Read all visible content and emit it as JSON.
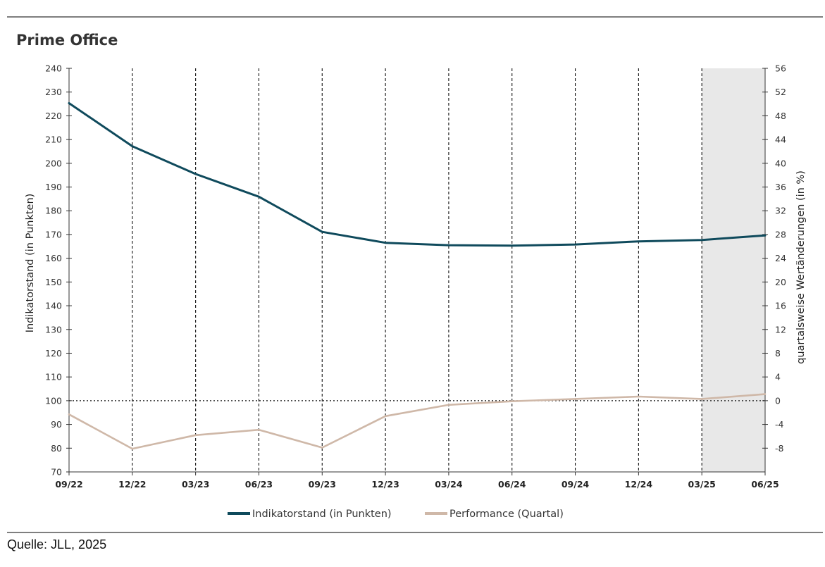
{
  "title": "Prime Office",
  "source": "Quelle: JLL, 2025",
  "chart_data": {
    "type": "line",
    "categories": [
      "09/22",
      "12/22",
      "03/23",
      "06/23",
      "09/23",
      "12/23",
      "03/24",
      "06/24",
      "09/24",
      "12/24",
      "03/25",
      "06/25"
    ],
    "series": [
      {
        "name": "Indikatorstand (in Punkten)",
        "axis": "left",
        "color": "#0f4a5c",
        "values": [
          225.3,
          207.2,
          195.5,
          185.9,
          171.1,
          166.5,
          165.5,
          165.3,
          165.8,
          167.1,
          167.7,
          169.6
        ]
      },
      {
        "name": "Performance (Quartal)",
        "axis": "right",
        "color": "#cfb8a8",
        "values": [
          -2.3,
          -8.1,
          -5.8,
          -4.9,
          -7.9,
          -2.6,
          -0.7,
          -0.1,
          0.3,
          0.7,
          0.3,
          1.1
        ]
      }
    ],
    "y_left": {
      "label": "Indikatorstand (in Punkten)",
      "min": 70,
      "max": 240,
      "ticks": [
        70,
        80,
        90,
        100,
        110,
        120,
        130,
        140,
        150,
        160,
        170,
        180,
        190,
        200,
        210,
        220,
        230,
        240
      ]
    },
    "y_right": {
      "label": "quartalsweise Wertänderungen (in %)",
      "min": -12,
      "max": 56,
      "ticks": [
        -8,
        -4,
        0,
        4,
        8,
        12,
        16,
        20,
        24,
        28,
        32,
        36,
        40,
        44,
        48,
        52,
        56
      ]
    },
    "reference_line": {
      "axis": "left",
      "value": 100,
      "style": "dotted"
    },
    "shaded_region": {
      "from": "03/25",
      "to": "06/25",
      "color": "#e8e8e8"
    },
    "vertical_gridlines": "dashed at every category",
    "legend_position": "bottom-center"
  }
}
